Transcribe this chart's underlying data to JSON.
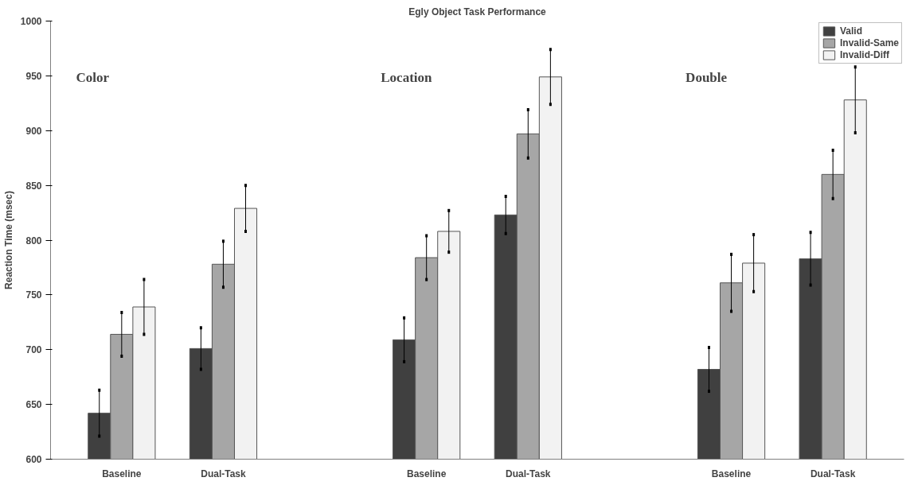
{
  "chart_data": {
    "type": "bar",
    "title": "Egly Object Task Performance",
    "ylabel": "Reaction Time (msec)",
    "categories": [
      "Baseline",
      "Dual-Task",
      null,
      "Baseline",
      "Dual-Task",
      null,
      "Baseline",
      "Dual-Task"
    ],
    "series": [
      {
        "name": "Valid",
        "color": "#404040",
        "values": [
          642,
          701,
          null,
          709,
          823,
          null,
          682,
          783
        ],
        "errors": [
          21,
          19,
          null,
          20,
          17,
          null,
          20,
          24
        ]
      },
      {
        "name": "Invalid-Same",
        "color": "#a6a6a6",
        "values": [
          714,
          778,
          null,
          784,
          897,
          null,
          761,
          860
        ],
        "errors": [
          20,
          21,
          null,
          20,
          22,
          null,
          26,
          22
        ]
      },
      {
        "name": "Invalid-Diff",
        "color": "#f2f2f2",
        "values": [
          739,
          829,
          null,
          808,
          949,
          null,
          779,
          928
        ],
        "errors": [
          25,
          21,
          null,
          19,
          25,
          null,
          26,
          30
        ]
      }
    ],
    "annotations": [
      "Color",
      "Location",
      "Double"
    ],
    "ylim": [
      600,
      1000
    ],
    "yticks": [
      600,
      650,
      700,
      750,
      800,
      850,
      900,
      950,
      1000
    ],
    "grid": false,
    "legend": "top right"
  }
}
